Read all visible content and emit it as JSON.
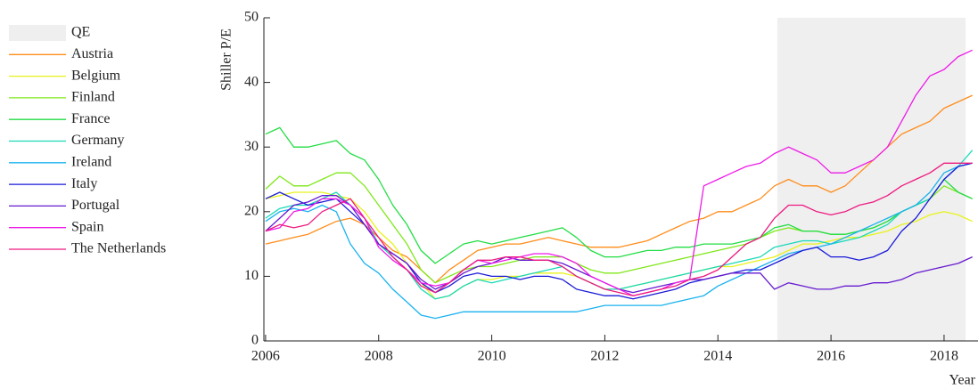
{
  "chart_data": {
    "type": "line",
    "ylabel": "Shiller P/E",
    "xlabel": "Year",
    "x": [
      2006,
      2006.25,
      2006.5,
      2006.75,
      2007,
      2007.25,
      2007.5,
      2007.75,
      2008,
      2008.25,
      2008.5,
      2008.75,
      2009,
      2009.25,
      2009.5,
      2009.75,
      2010,
      2010.25,
      2010.5,
      2010.75,
      2011,
      2011.25,
      2011.5,
      2011.75,
      2012,
      2012.25,
      2012.5,
      2012.75,
      2013,
      2013.25,
      2013.5,
      2013.75,
      2014,
      2014.25,
      2014.5,
      2014.75,
      2015,
      2015.25,
      2015.5,
      2015.75,
      2016,
      2016.25,
      2016.5,
      2016.75,
      2017,
      2017.25,
      2017.5,
      2017.75,
      2018,
      2018.25,
      2018.5
    ],
    "shaded_regions": [
      {
        "name": "QE",
        "x": [
          2015.05,
          2018.38
        ],
        "color": "#efefef"
      }
    ],
    "series": [
      {
        "name": "Austria",
        "color": "#ff8c1a",
        "values": [
          15,
          15.5,
          16,
          16.5,
          17.5,
          18.5,
          19,
          18,
          16,
          14,
          13,
          11,
          9,
          11,
          12.5,
          14,
          14.5,
          15,
          15,
          15.5,
          16,
          15.5,
          15,
          14.5,
          14.5,
          14.5,
          15,
          15.5,
          16.5,
          17.5,
          18.5,
          19,
          20,
          20,
          21,
          22,
          24,
          25,
          24,
          24,
          23,
          24,
          26,
          28,
          30,
          32,
          33,
          34,
          36,
          37,
          38
        ]
      },
      {
        "name": "Belgium",
        "color": "#e8f21a",
        "values": [
          22,
          22.5,
          23,
          23,
          23,
          22.5,
          22,
          20,
          17,
          15,
          12,
          9,
          6.5,
          7,
          8.5,
          9.5,
          9.5,
          10,
          10,
          10.5,
          10.5,
          10.5,
          10,
          9,
          8,
          8,
          8.5,
          9,
          9.5,
          10,
          10.5,
          11,
          11.5,
          11.5,
          12,
          12.5,
          13,
          14,
          15,
          15,
          15.5,
          16,
          16,
          16.5,
          17,
          18,
          18.5,
          19.5,
          20,
          19.5,
          18.5
        ]
      },
      {
        "name": "Finland",
        "color": "#7fe81a",
        "values": [
          23.5,
          25.5,
          24,
          24,
          25,
          26,
          26,
          24,
          21,
          18,
          15,
          11,
          9,
          10,
          11,
          11.5,
          11.5,
          12,
          12.5,
          13,
          13,
          13,
          12,
          11,
          10.5,
          10.5,
          11,
          11.5,
          12,
          12.5,
          13,
          13.5,
          14,
          14.5,
          15,
          16,
          17,
          17.5,
          17,
          17,
          16.5,
          16.5,
          17,
          17.5,
          18.5,
          20,
          21,
          22,
          24,
          23,
          22
        ]
      },
      {
        "name": "France",
        "color": "#22dd44",
        "values": [
          32,
          33,
          30,
          30,
          30.5,
          31,
          29,
          28,
          25,
          21,
          18,
          14,
          12,
          13.5,
          15,
          15.5,
          15,
          15.5,
          16,
          16.5,
          17,
          17.5,
          16,
          14,
          13,
          13,
          13.5,
          14,
          14,
          14.5,
          14.5,
          15,
          15,
          15,
          15.5,
          16,
          17.5,
          18,
          17,
          17,
          16.5,
          16.5,
          17,
          17.5,
          18.5,
          20,
          21,
          22,
          25,
          23,
          22
        ]
      },
      {
        "name": "Germany",
        "color": "#1ad9b8",
        "values": [
          19,
          20.5,
          21,
          21,
          22,
          23,
          21,
          19,
          15,
          13,
          11,
          8,
          6.5,
          7,
          8.5,
          9.5,
          9,
          9.5,
          10,
          10.5,
          11,
          11.5,
          10,
          9,
          8,
          8,
          8.5,
          9,
          9.5,
          10,
          10.5,
          11,
          11.5,
          12,
          12.5,
          13,
          14.5,
          15,
          15.5,
          15.5,
          15,
          15.5,
          16,
          17,
          18,
          20,
          21,
          22,
          25,
          27,
          29.5
        ]
      },
      {
        "name": "Ireland",
        "color": "#1ab2ee",
        "values": [
          18.5,
          20,
          20.5,
          20,
          21,
          20,
          15,
          12,
          10.5,
          8,
          6,
          4,
          3.5,
          4,
          4.5,
          4.5,
          4.5,
          4.5,
          4.5,
          4.5,
          4.5,
          4.5,
          4.5,
          5,
          5.5,
          5.5,
          5.5,
          5.5,
          5.5,
          6,
          6.5,
          7,
          8.5,
          9.5,
          10.5,
          11.5,
          12.5,
          13.5,
          14,
          14.5,
          15,
          16,
          17,
          18,
          19,
          20,
          21,
          23,
          26,
          27,
          27.5
        ]
      },
      {
        "name": "Italy",
        "color": "#1a1ad9",
        "values": [
          22,
          23,
          22,
          21,
          21.5,
          22,
          20,
          18,
          15,
          13.5,
          12,
          9,
          7.5,
          8.5,
          10,
          10.5,
          10,
          10,
          9.5,
          10,
          10,
          9.5,
          8,
          7.5,
          7,
          7,
          6.5,
          7,
          7.5,
          8,
          9,
          9.5,
          10,
          10.5,
          11,
          11,
          12,
          13,
          14,
          14.5,
          13,
          13,
          12.5,
          13,
          14,
          17,
          19,
          22,
          25,
          27,
          27.5
        ]
      },
      {
        "name": "Portugal",
        "color": "#661ad0",
        "values": [
          17,
          19,
          21,
          21.5,
          22.5,
          22.5,
          21,
          18,
          15,
          13.5,
          12,
          9.5,
          8,
          9,
          10.5,
          11.5,
          12,
          13,
          12.5,
          12.5,
          12.5,
          12,
          11,
          10,
          9,
          8,
          7.5,
          8,
          8.5,
          9,
          9.5,
          9.5,
          10,
          10.5,
          10.5,
          10.5,
          8,
          9,
          8.5,
          8,
          8,
          8.5,
          8.5,
          9,
          9,
          9.5,
          10.5,
          11,
          11.5,
          12,
          13
        ]
      },
      {
        "name": "Spain",
        "color": "#ee1ae8",
        "values": [
          17,
          17.5,
          20,
          20.5,
          22,
          22,
          21,
          19,
          14.5,
          12.5,
          11,
          9,
          8.5,
          9,
          11,
          12.5,
          12,
          12.5,
          13,
          13.5,
          13.5,
          13,
          12,
          10,
          9,
          8,
          7,
          7.5,
          8,
          9,
          9.5,
          24,
          25,
          26,
          27,
          27.5,
          29,
          30,
          29,
          28,
          26,
          26,
          27,
          28,
          30,
          34,
          38,
          41,
          42,
          44,
          45
        ]
      },
      {
        "name": "The Netherlands",
        "color": "#ee1a80",
        "values": [
          17,
          18,
          17.5,
          18,
          20,
          21,
          22,
          19,
          16,
          13,
          11,
          8.5,
          7.5,
          9,
          11,
          12.5,
          12.5,
          13,
          13,
          12.5,
          12.5,
          11.5,
          10,
          9,
          8,
          7.5,
          7,
          7.5,
          8,
          8.5,
          9.5,
          10,
          11,
          13,
          15,
          16,
          19,
          21,
          21,
          20,
          19.5,
          20,
          21,
          21.5,
          22.5,
          24,
          25,
          26,
          27.5,
          27.5,
          27.5
        ]
      }
    ],
    "xlim": [
      2005.97,
      2018.6
    ],
    "xticks": [
      2006,
      2008,
      2010,
      2012,
      2014,
      2016,
      2018
    ],
    "ylim": [
      0,
      50
    ],
    "yticks": [
      0,
      10,
      20,
      30,
      40,
      50
    ]
  }
}
